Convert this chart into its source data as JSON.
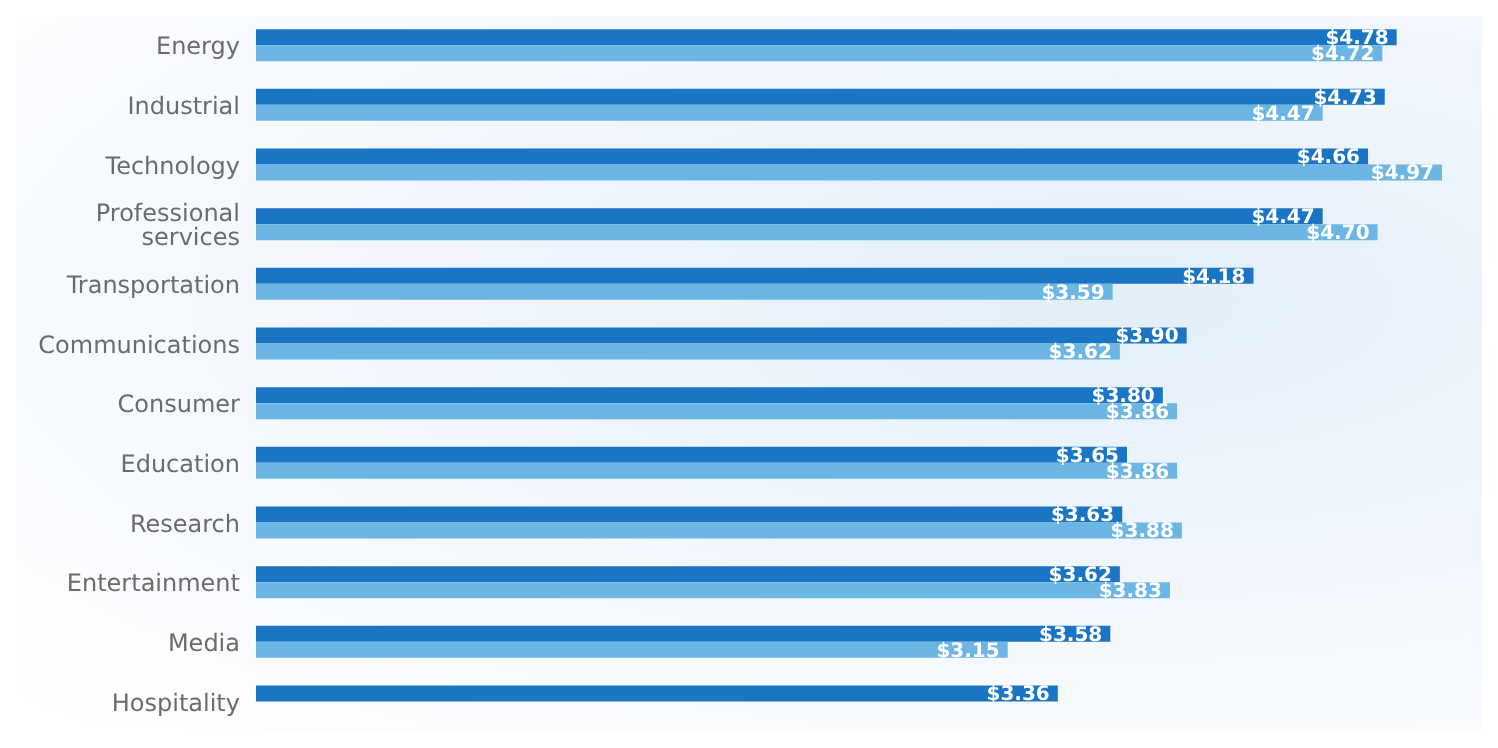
{
  "chart_data": {
    "type": "bar",
    "orientation": "horizontal",
    "tick_labels": "y",
    "categories": [
      "Energy",
      "Industrial",
      "Technology",
      "Professional services",
      "Transportation",
      "Communications",
      "Consumer",
      "Education",
      "Research",
      "Entertainment",
      "Media",
      "Hospitality"
    ],
    "series": [
      {
        "color": "#1a75c4",
        "values": [
          4.78,
          4.73,
          4.66,
          4.47,
          4.18,
          3.9,
          3.8,
          3.65,
          3.63,
          3.62,
          3.58,
          3.36
        ],
        "value_labels": [
          "$4.78",
          "$4.73",
          "$4.66",
          "$4.47",
          "$4.18",
          "$3.90",
          "$3.80",
          "$3.65",
          "$3.63",
          "$3.62",
          "$3.58",
          "$3.36"
        ]
      },
      {
        "color": "#6cb6e4",
        "values": [
          4.72,
          4.47,
          4.97,
          4.7,
          3.59,
          3.62,
          3.86,
          3.86,
          3.88,
          3.83,
          3.15,
          null
        ],
        "value_labels": [
          "$4.72",
          "$4.47",
          "$4.97",
          "$4.70",
          "$3.59",
          "$3.62",
          "$3.86",
          "$3.86",
          "$3.88",
          "$3.83",
          "$3.15",
          null
        ]
      }
    ],
    "grid": false,
    "legend": false
  }
}
